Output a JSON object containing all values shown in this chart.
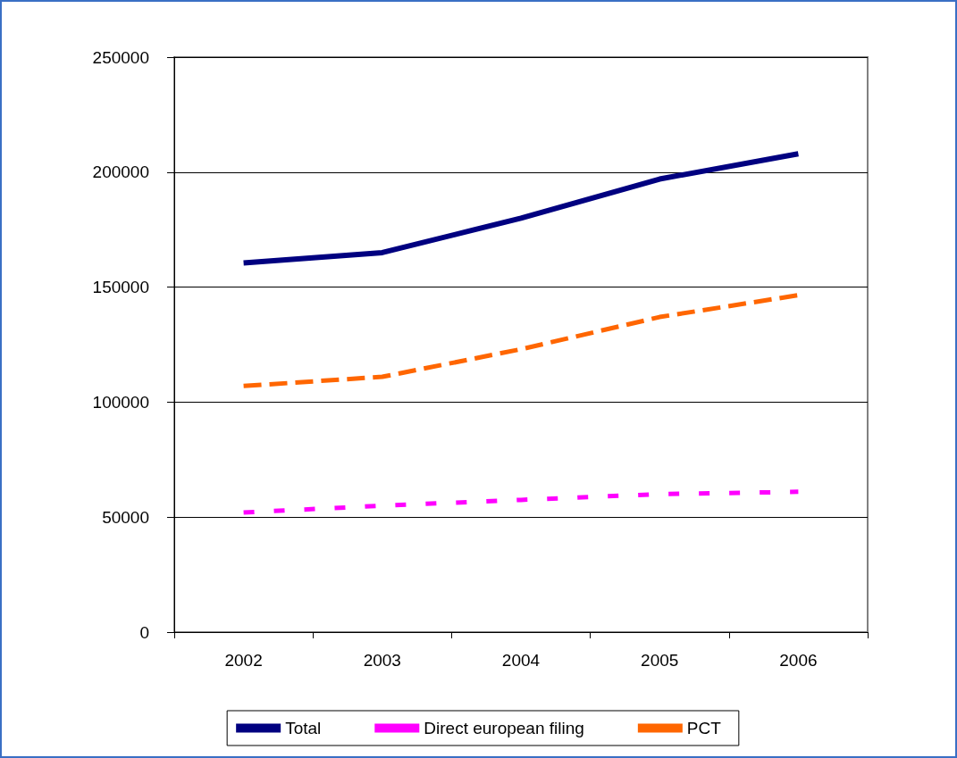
{
  "chart_data": {
    "type": "line",
    "categories": [
      "2002",
      "2003",
      "2004",
      "2005",
      "2006"
    ],
    "series": [
      {
        "name": "Total",
        "color": "#000080",
        "values": [
          160500,
          165000,
          180000,
          197000,
          208000
        ],
        "line_style": "solid"
      },
      {
        "name": "Direct european filing",
        "color": "#ff00ff",
        "values": [
          52000,
          55000,
          57500,
          60000,
          61000
        ],
        "line_style": "dashed"
      },
      {
        "name": "PCT",
        "color": "#ff6600",
        "values": [
          107000,
          111000,
          123000,
          137000,
          146500
        ],
        "line_style": "dashed"
      }
    ],
    "ylim": [
      0,
      250000
    ],
    "yticks": [
      0,
      50000,
      100000,
      150000,
      200000,
      250000
    ],
    "grid": "y",
    "legend": "bottom",
    "marker": "none"
  }
}
